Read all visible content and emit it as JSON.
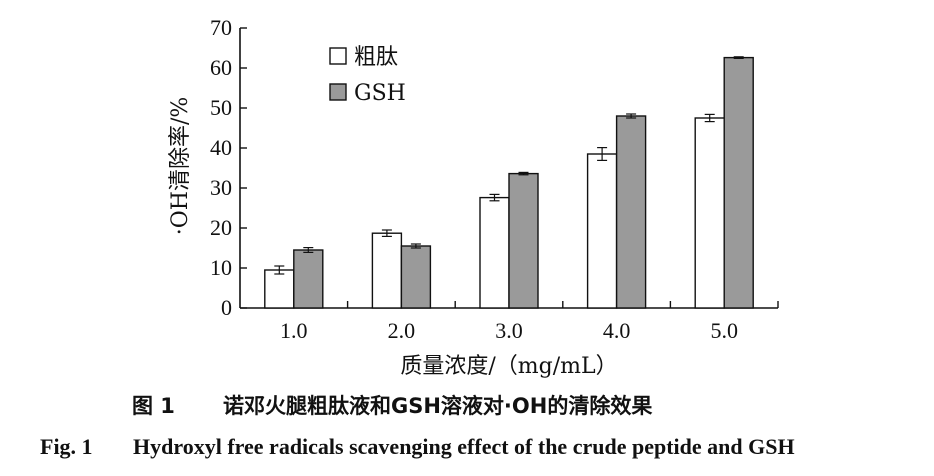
{
  "chart_data": {
    "type": "bar",
    "categories": [
      "1.0",
      "2.0",
      "3.0",
      "4.0",
      "5.0"
    ],
    "series": [
      {
        "name": "粗肽",
        "color": "#ffffff",
        "values": [
          9.5,
          18.7,
          27.6,
          38.5,
          47.5
        ],
        "errors": [
          1.0,
          0.8,
          0.8,
          1.6,
          0.9
        ]
      },
      {
        "name": "GSH",
        "color": "#9a9a9a",
        "values": [
          14.5,
          15.5,
          33.6,
          48.0,
          62.6
        ],
        "errors": [
          0.6,
          0.5,
          0.3,
          0.5,
          0.2
        ]
      }
    ],
    "xlabel": "质量浓度/（mg/mL）",
    "ylabel": "·OH清除率/%",
    "ylim": [
      0,
      70
    ],
    "yticks": [
      0,
      10,
      20,
      30,
      40,
      50,
      60,
      70
    ],
    "grid": false,
    "legend_position": "top-left"
  },
  "caption": {
    "cn_label": "图 1",
    "cn_text": "诺邓火腿粗肽液和GSH溶液对·OH的清除效果",
    "en_label": "Fig. 1",
    "en_text": "Hydroxyl free radicals scavenging effect of the crude peptide and GSH"
  }
}
